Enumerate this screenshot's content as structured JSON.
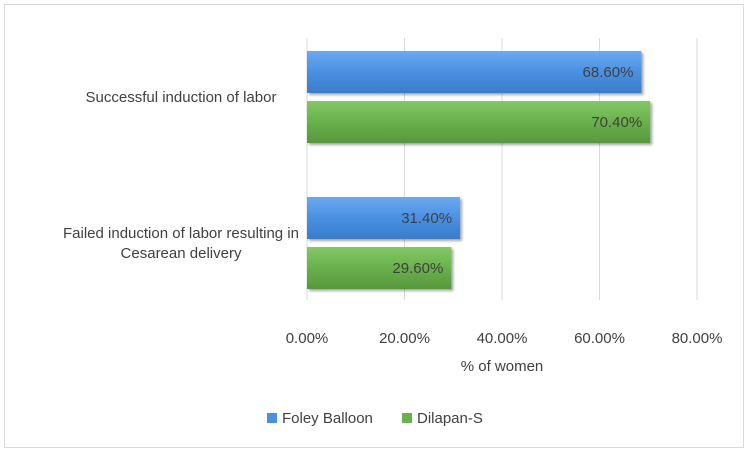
{
  "chart_data": {
    "type": "bar",
    "orientation": "horizontal",
    "categories": [
      [
        "Successful induction of labor"
      ],
      [
        "Failed induction of labor resulting in",
        "Cesarean delivery"
      ]
    ],
    "series": [
      {
        "name": "Foley Balloon",
        "color": "#4a90e2",
        "values": [
          68.6,
          31.4
        ],
        "labels": [
          "68.60%",
          "31.40%"
        ]
      },
      {
        "name": "Dilapan-S",
        "color": "#6ab04c",
        "values": [
          70.4,
          29.6
        ],
        "labels": [
          "70.40%",
          "29.60%"
        ]
      }
    ],
    "xlabel": "% of women",
    "xlim": [
      0,
      80
    ],
    "xticks": [
      0,
      20,
      40,
      60,
      80
    ],
    "xtick_labels": [
      "0.00%",
      "20.00%",
      "40.00%",
      "60.00%",
      "80.00%"
    ],
    "grid": "vertical",
    "legend_position": "bottom"
  }
}
